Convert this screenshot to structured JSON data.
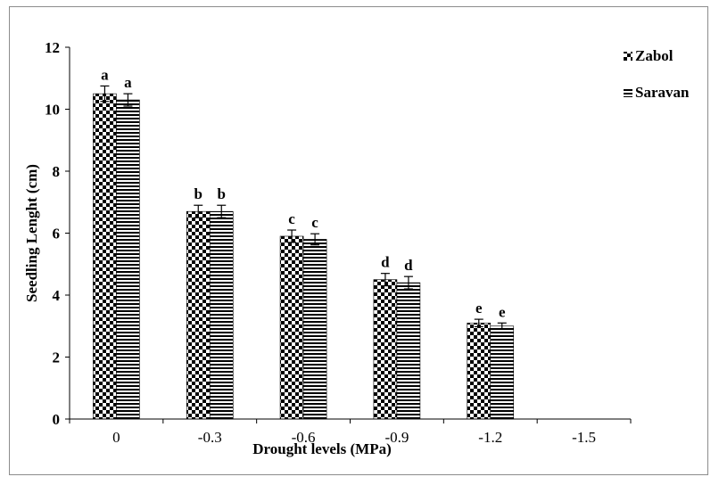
{
  "chart_data": {
    "type": "bar",
    "title": "",
    "xlabel": "Drought levels (MPa)",
    "ylabel": "Seedling Lenght (cm)",
    "ylim": [
      0,
      12
    ],
    "yticks": [
      0,
      2,
      4,
      6,
      8,
      10,
      12
    ],
    "grid": false,
    "legend_position": "top-right",
    "categories": [
      "0",
      "-0.3",
      "-0.6",
      "-0.9",
      "-1.2",
      "-1.5"
    ],
    "series": [
      {
        "name": "Zabol",
        "pattern": "checkerboard",
        "color": "#000000",
        "values": [
          10.5,
          6.7,
          5.9,
          4.5,
          3.1,
          null
        ],
        "errors": [
          0.25,
          0.2,
          0.2,
          0.2,
          0.12,
          null
        ],
        "labels": [
          "a",
          "b",
          "c",
          "d",
          "e",
          ""
        ]
      },
      {
        "name": "Saravan",
        "pattern": "horizontal-stripes",
        "color": "#000000",
        "values": [
          10.3,
          6.7,
          5.8,
          4.4,
          3.0,
          null
        ],
        "errors": [
          0.2,
          0.2,
          0.18,
          0.2,
          0.1,
          null
        ],
        "labels": [
          "a",
          "b",
          "c",
          "d",
          "e",
          ""
        ]
      }
    ]
  }
}
